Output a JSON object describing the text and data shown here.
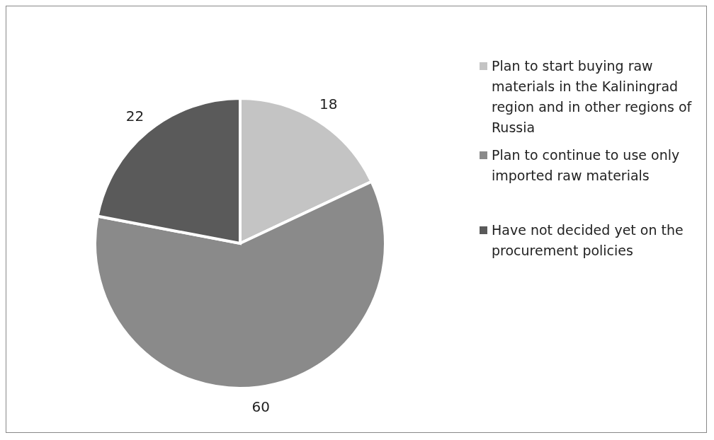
{
  "chart_data": {
    "type": "pie",
    "categories": [
      "Plan to start buying raw materials in the Kaliningrad region and in other regions of Russia",
      "Plan to continue to use only imported raw materials",
      "Have not decided yet on the procurement policies"
    ],
    "values": [
      18,
      60,
      22
    ],
    "colors": [
      "#c4c4c4",
      "#8a8a8a",
      "#5a5a5a"
    ],
    "data_labels": true,
    "legend": "right"
  }
}
